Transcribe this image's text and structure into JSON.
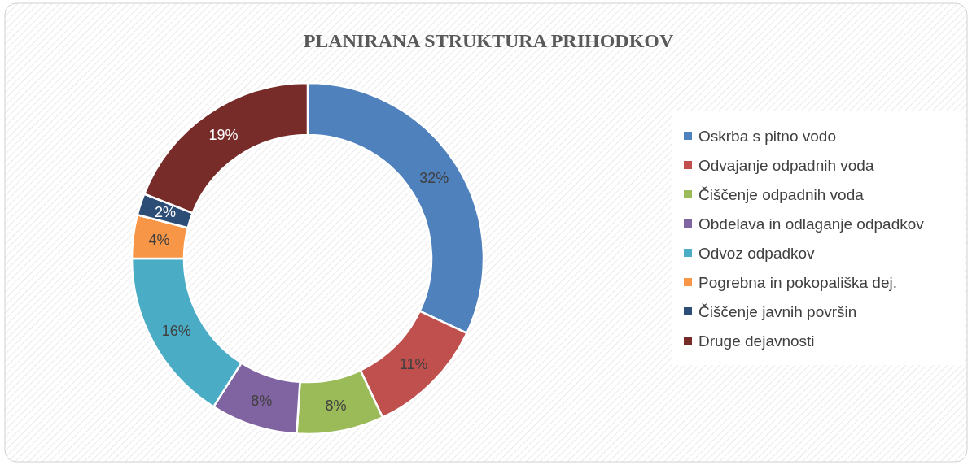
{
  "chart_data": {
    "type": "donut",
    "title": "PLANIRANA STRUKTURA PRIHODKOV",
    "categories": [
      "Oskrba s pitno vodo",
      "Odvajanje odpadnih voda",
      "Čiščenje odpadnih voda",
      "Obdelava in odlaganje odpadkov",
      "Odvoz odpadkov",
      "Pogrebna in pokopališka dej.",
      "Čiščenje javnih površin",
      "Druge dejavnosti"
    ],
    "values": [
      32,
      11,
      8,
      8,
      16,
      4,
      2,
      19
    ],
    "colors": [
      "#4f81bd",
      "#c0504d",
      "#9bbb59",
      "#8064a2",
      "#4bacc6",
      "#f79646",
      "#2c4d75",
      "#772c2a"
    ],
    "value_labels": [
      "32%",
      "11%",
      "8%",
      "8%",
      "16%",
      "4%",
      "2%",
      "19%"
    ],
    "legend": "right"
  }
}
